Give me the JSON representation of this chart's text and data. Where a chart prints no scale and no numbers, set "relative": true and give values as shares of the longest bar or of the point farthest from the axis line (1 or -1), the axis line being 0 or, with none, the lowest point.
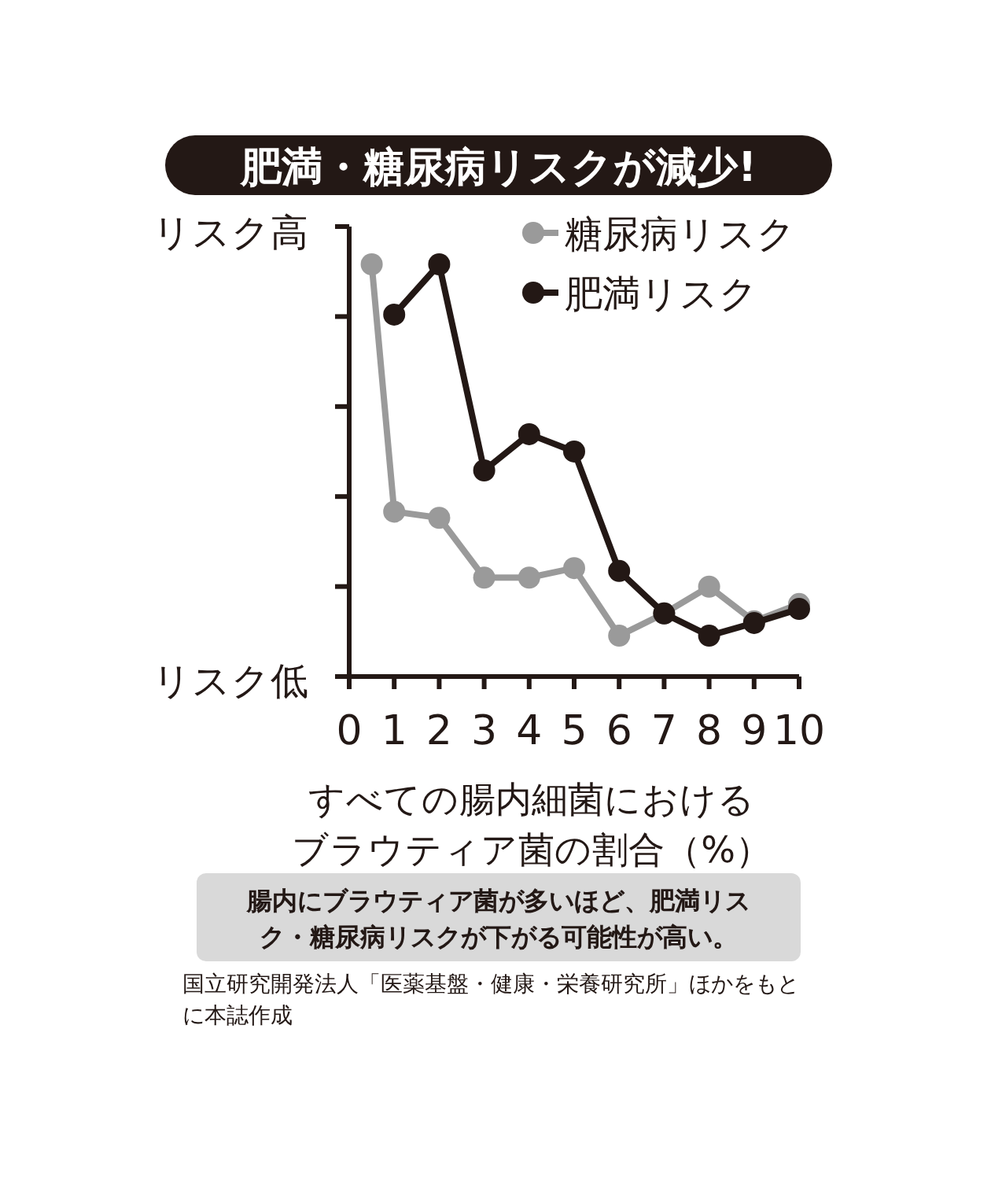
{
  "chart_data": {
    "type": "line",
    "title": "肥満・糖尿病リスクが減少!",
    "xlabel": "すべての腸内細菌におけるブラウティア菌の割合（%）",
    "relative": true,
    "xlim": [
      0,
      10
    ],
    "xticks": [
      0,
      1,
      2,
      3,
      4,
      5,
      6,
      7,
      8,
      9,
      10
    ],
    "legend": "top right",
    "marker": "circle",
    "line_style": "solid",
    "series": [
      {
        "name": "糖尿病リスク",
        "color": "#9a9a9a",
        "x": [
          0.5,
          1,
          2,
          3,
          4,
          5,
          6,
          7,
          8,
          9,
          10
        ],
        "values": [
          1.0,
          0.4,
          0.385,
          0.24,
          0.24,
          0.263,
          0.099,
          0.153,
          0.218,
          0.134,
          0.176
        ]
      },
      {
        "name": "肥満リスク",
        "color": "#231815",
        "x": [
          1,
          2,
          3,
          4,
          5,
          6,
          7,
          8,
          9,
          10
        ],
        "values": [
          0.878,
          1.0,
          0.5,
          0.588,
          0.546,
          0.256,
          0.153,
          0.099,
          0.13,
          0.164
        ]
      }
    ],
    "annotations": [
      "リスク高",
      "リスク低",
      "腸内にブラウティア菌が多いほど、肥満リスク・糖尿病リスクが下がる可能性が高い。",
      "国立研究開発法人「医薬基盤・健康・栄養研究所」ほかをもとに本誌作成"
    ]
  }
}
